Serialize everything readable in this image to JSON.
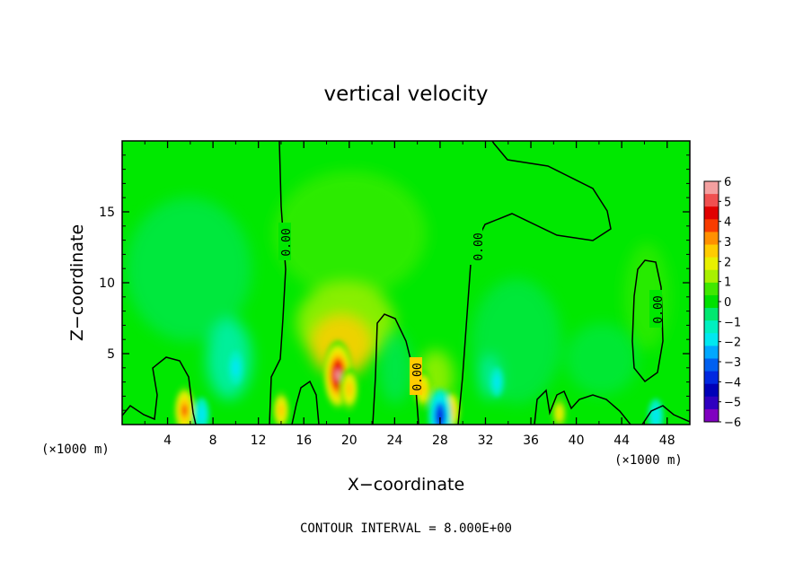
{
  "chart_data": {
    "type": "heatmap",
    "title": "vertical velocity",
    "xlabel": "X−coordinate",
    "ylabel": "Z−coordinate",
    "x_unit_left": "(×1000 m)",
    "x_unit_right": "(×1000 m)",
    "footer": "CONTOUR INTERVAL = 8.000E+00",
    "xlim": [
      0,
      50
    ],
    "ylim": [
      0,
      20
    ],
    "x_ticks": [
      "4",
      "8",
      "12",
      "16",
      "20",
      "24",
      "28",
      "32",
      "36",
      "40",
      "44",
      "48"
    ],
    "y_ticks": [
      "5",
      "10",
      "15"
    ],
    "contour_label": "0.00",
    "colorbar": {
      "labels": [
        "6",
        "5",
        "4",
        "3",
        "2",
        "1",
        "0",
        "−1",
        "−2",
        "−3",
        "−4",
        "−5",
        "−6"
      ],
      "colors": [
        "#f4a0a0",
        "#f05050",
        "#e00000",
        "#f83c00",
        "#ff9000",
        "#ffcc00",
        "#e8f000",
        "#a8f000",
        "#40e800",
        "#00e000",
        "#00e870",
        "#00f0c0",
        "#00e8f0",
        "#00a8ff",
        "#0060f0",
        "#0028e0",
        "#0000b8",
        "#3000c0",
        "#8000c0"
      ]
    },
    "features": [
      {
        "x": 5.5,
        "z": 1.0,
        "w": 3.5
      },
      {
        "x": 14.0,
        "z": 1.0,
        "w": 2.5
      },
      {
        "x": 19.0,
        "z": 3.5,
        "w": 5.5
      },
      {
        "x": 20.0,
        "z": 2.5,
        "w": 3.0
      },
      {
        "x": 26.5,
        "z": 2.5,
        "w": 2.5
      },
      {
        "x": 29.0,
        "z": 1.0,
        "w": 3.0
      },
      {
        "x": 38.5,
        "z": 0.8,
        "w": 2.0
      },
      {
        "x": 10.0,
        "z": 4.0,
        "w": -2.0
      },
      {
        "x": 7.0,
        "z": 0.7,
        "w": -2.0
      },
      {
        "x": 28.0,
        "z": 0.6,
        "w": -4.0
      },
      {
        "x": 33.0,
        "z": 3.0,
        "w": -1.5
      },
      {
        "x": 47.0,
        "z": 0.6,
        "w": -2.0
      }
    ]
  }
}
